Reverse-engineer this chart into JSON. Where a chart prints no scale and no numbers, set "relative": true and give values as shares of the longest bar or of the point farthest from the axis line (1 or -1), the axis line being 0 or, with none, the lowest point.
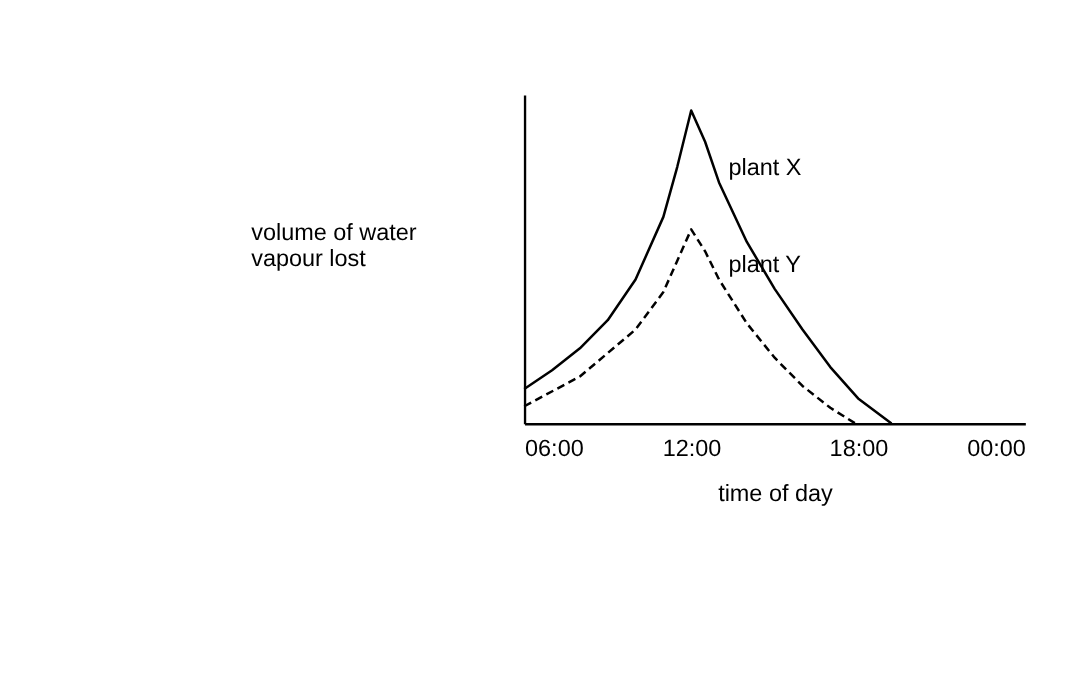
{
  "chart_data": {
    "type": "line",
    "relative": true,
    "xlabel": "time of day",
    "ylabel": "volume of water vapour lost",
    "xlim": [
      6,
      24
    ],
    "xticks": [
      {
        "value": 6,
        "label": "06:00"
      },
      {
        "value": 12,
        "label": "12:00"
      },
      {
        "value": 18,
        "label": "18:00"
      },
      {
        "value": 24,
        "label": "00:00"
      }
    ],
    "grid": false,
    "marker": "none",
    "series": [
      {
        "name": "plant X",
        "color": "#000000",
        "line_style": "solid",
        "x": [
          6,
          7,
          8,
          9,
          10,
          11,
          11.5,
          12,
          12.5,
          13,
          14,
          15,
          16,
          17,
          18,
          19.2
        ],
        "values": [
          0.11,
          0.17,
          0.24,
          0.33,
          0.46,
          0.66,
          0.82,
          1.0,
          0.9,
          0.77,
          0.58,
          0.43,
          0.3,
          0.18,
          0.08,
          0
        ]
      },
      {
        "name": "plant Y",
        "color": "#000000",
        "line_style": "dashed",
        "x": [
          6,
          8,
          10,
          11,
          11.5,
          12,
          12.5,
          13,
          14,
          15,
          16,
          17,
          17.9
        ],
        "values": [
          0.055,
          0.15,
          0.3,
          0.42,
          0.52,
          0.62,
          0.55,
          0.46,
          0.32,
          0.21,
          0.12,
          0.05,
          0
        ]
      }
    ]
  }
}
